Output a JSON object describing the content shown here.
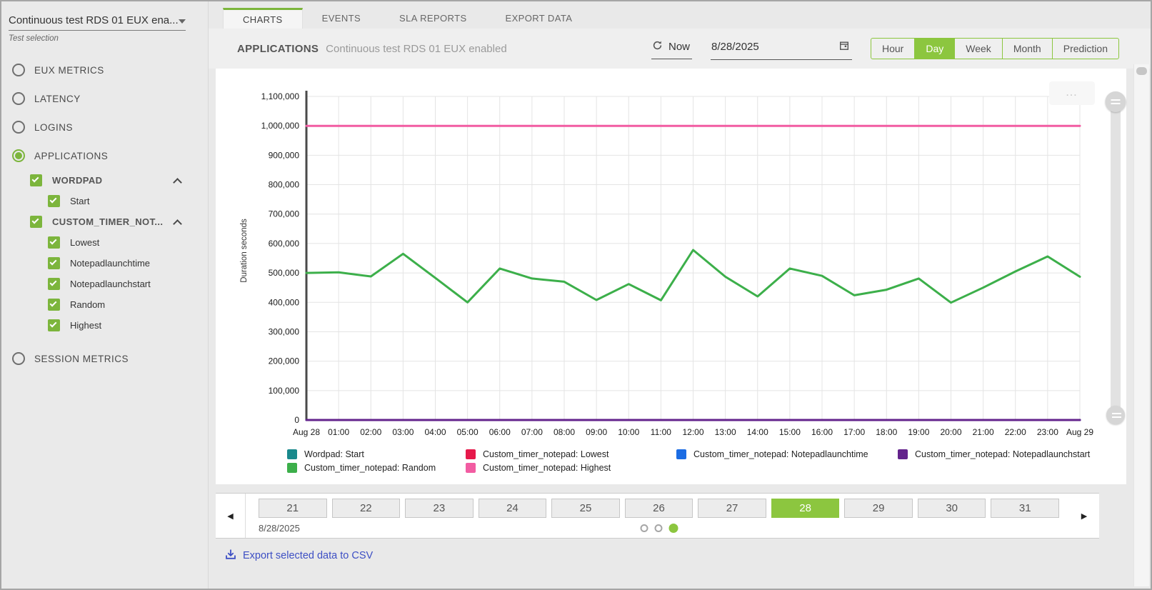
{
  "sidebar": {
    "test_dropdown": {
      "value": "Continuous test RDS 01 EUX ena...",
      "label": "Test selection"
    },
    "items": [
      {
        "type": "radio",
        "label": "EUX METRICS",
        "selected": false
      },
      {
        "type": "radio",
        "label": "LATENCY",
        "selected": false
      },
      {
        "type": "radio",
        "label": "LOGINS",
        "selected": false
      },
      {
        "type": "radio",
        "label": "APPLICATIONS",
        "selected": true
      },
      {
        "type": "check-group",
        "label": "WORDPAD",
        "checked": true,
        "expanded": true
      },
      {
        "type": "check-sub",
        "label": "Start",
        "checked": true
      },
      {
        "type": "check-group",
        "label": "CUSTOM_TIMER_NOT...",
        "checked": true,
        "expanded": true
      },
      {
        "type": "check-sub",
        "label": "Lowest",
        "checked": true
      },
      {
        "type": "check-sub",
        "label": "Notepadlaunchtime",
        "checked": true
      },
      {
        "type": "check-sub",
        "label": "Notepadlaunchstart",
        "checked": true
      },
      {
        "type": "check-sub",
        "label": "Random",
        "checked": true
      },
      {
        "type": "check-sub",
        "label": "Highest",
        "checked": true
      },
      {
        "type": "radio",
        "label": "SESSION METRICS",
        "selected": false
      }
    ]
  },
  "tabs": [
    {
      "label": "CHARTS",
      "active": true
    },
    {
      "label": "EVENTS",
      "active": false
    },
    {
      "label": "SLA REPORTS",
      "active": false
    },
    {
      "label": "EXPORT DATA",
      "active": false
    }
  ],
  "header": {
    "section_label": "APPLICATIONS",
    "test_name": "Continuous test RDS 01 EUX enabled",
    "refresh_label": "Now",
    "date_value": "8/28/2025",
    "range_options": [
      {
        "label": "Hour",
        "active": false
      },
      {
        "label": "Day",
        "active": true
      },
      {
        "label": "Week",
        "active": false
      },
      {
        "label": "Month",
        "active": false
      },
      {
        "label": "Prediction",
        "active": false
      }
    ]
  },
  "chart_data": {
    "type": "line",
    "ylabel": "Duration seconds",
    "ylim": [
      0,
      1100000
    ],
    "y_tick_step": 100000,
    "grid": true,
    "legend_position": "bottom",
    "x_labels": [
      "Aug 28",
      "01:00",
      "02:00",
      "03:00",
      "04:00",
      "05:00",
      "06:00",
      "07:00",
      "08:00",
      "09:00",
      "10:00",
      "11:00",
      "12:00",
      "13:00",
      "14:00",
      "15:00",
      "16:00",
      "17:00",
      "18:00",
      "19:00",
      "20:00",
      "21:00",
      "22:00",
      "23:00",
      "Aug 29"
    ],
    "series": [
      {
        "name": "Wordpad: Start",
        "color": "#19898c",
        "values": [
          0,
          0,
          0,
          0,
          0,
          0,
          0,
          0,
          0,
          0,
          0,
          0,
          0,
          0,
          0,
          0,
          0,
          0,
          0,
          0,
          0,
          0,
          0,
          0,
          0
        ]
      },
      {
        "name": "Custom_timer_notepad: Lowest",
        "color": "#e6194b",
        "values": [
          0,
          0,
          0,
          0,
          0,
          0,
          0,
          0,
          0,
          0,
          0,
          0,
          0,
          0,
          0,
          0,
          0,
          0,
          0,
          0,
          0,
          0,
          0,
          0,
          0
        ]
      },
      {
        "name": "Custom_timer_notepad: Notepadlaunchtime",
        "color": "#1b6ce3",
        "values": [
          0,
          0,
          0,
          0,
          0,
          0,
          0,
          0,
          0,
          0,
          0,
          0,
          0,
          0,
          0,
          0,
          0,
          0,
          0,
          0,
          0,
          0,
          0,
          0,
          0
        ]
      },
      {
        "name": "Custom_timer_notepad: Notepadlaunchstart",
        "color": "#63238c",
        "values": [
          0,
          0,
          0,
          0,
          0,
          0,
          0,
          0,
          0,
          0,
          0,
          0,
          0,
          0,
          0,
          0,
          0,
          0,
          0,
          0,
          0,
          0,
          0,
          0,
          0
        ]
      },
      {
        "name": "Custom_timer_notepad: Random",
        "color": "#3caf4a",
        "values": [
          500000,
          502000,
          488000,
          565000,
          483000,
          400000,
          515000,
          481000,
          470000,
          408000,
          462000,
          407000,
          578000,
          487000,
          420000,
          515000,
          490000,
          424000,
          443000,
          481000,
          399000,
          450000,
          505000,
          556000,
          487000
        ]
      },
      {
        "name": "Custom_timer_notepad: Highest",
        "color": "#f25ca2",
        "values": [
          1000000,
          1000000,
          1000000,
          1000000,
          1000000,
          1000000,
          1000000,
          1000000,
          1000000,
          1000000,
          1000000,
          1000000,
          1000000,
          1000000,
          1000000,
          1000000,
          1000000,
          1000000,
          1000000,
          1000000,
          1000000,
          1000000,
          1000000,
          1000000,
          1000000
        ]
      }
    ]
  },
  "day_picker": {
    "days": [
      "21",
      "22",
      "23",
      "24",
      "25",
      "26",
      "27",
      "28",
      "29",
      "30",
      "31"
    ],
    "selected_day": "28",
    "date_label": "8/28/2025",
    "dots": {
      "count": 3,
      "active_index": 2
    }
  },
  "export": {
    "label": "Export selected data to CSV"
  },
  "icons": {
    "prev_arrow": "◀",
    "next_arrow": "▶",
    "ellipsis": "…"
  },
  "colors": {
    "accent_green": "#8cc63f",
    "check_green": "#7cb53c",
    "link_blue": "#3d4fc4"
  }
}
